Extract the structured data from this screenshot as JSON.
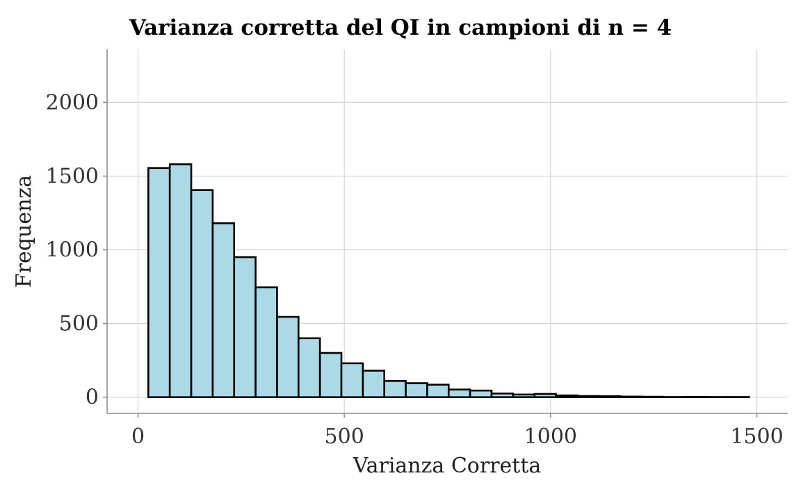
{
  "chart_data": {
    "type": "bar",
    "title": "Varianza corretta del QI in campioni di n = 4",
    "xlabel": "Varianza Corretta",
    "ylabel": "Frequenza",
    "xlim": [
      -75,
      1575
    ],
    "ylim": [
      -110,
      2360
    ],
    "x_ticks": [
      0,
      500,
      1000,
      1500
    ],
    "y_ticks": [
      0,
      500,
      1000,
      1500,
      2000
    ],
    "grid": true,
    "bin_width": 52,
    "bins": [
      {
        "start": 25,
        "count": 1555
      },
      {
        "start": 77,
        "count": 1580
      },
      {
        "start": 129,
        "count": 1405
      },
      {
        "start": 181,
        "count": 1180
      },
      {
        "start": 233,
        "count": 950
      },
      {
        "start": 285,
        "count": 745
      },
      {
        "start": 337,
        "count": 545
      },
      {
        "start": 389,
        "count": 400
      },
      {
        "start": 441,
        "count": 300
      },
      {
        "start": 493,
        "count": 230
      },
      {
        "start": 545,
        "count": 180
      },
      {
        "start": 597,
        "count": 110
      },
      {
        "start": 649,
        "count": 95
      },
      {
        "start": 701,
        "count": 85
      },
      {
        "start": 753,
        "count": 52
      },
      {
        "start": 805,
        "count": 45
      },
      {
        "start": 857,
        "count": 25
      },
      {
        "start": 909,
        "count": 18
      },
      {
        "start": 961,
        "count": 22
      },
      {
        "start": 1013,
        "count": 12
      },
      {
        "start": 1065,
        "count": 8
      },
      {
        "start": 1117,
        "count": 7
      },
      {
        "start": 1169,
        "count": 4
      },
      {
        "start": 1221,
        "count": 3
      },
      {
        "start": 1273,
        "count": 1
      },
      {
        "start": 1325,
        "count": 2
      },
      {
        "start": 1377,
        "count": 1
      },
      {
        "start": 1429,
        "count": 1
      }
    ],
    "bar_fill": "#add8e6",
    "bar_stroke": "#000000"
  }
}
